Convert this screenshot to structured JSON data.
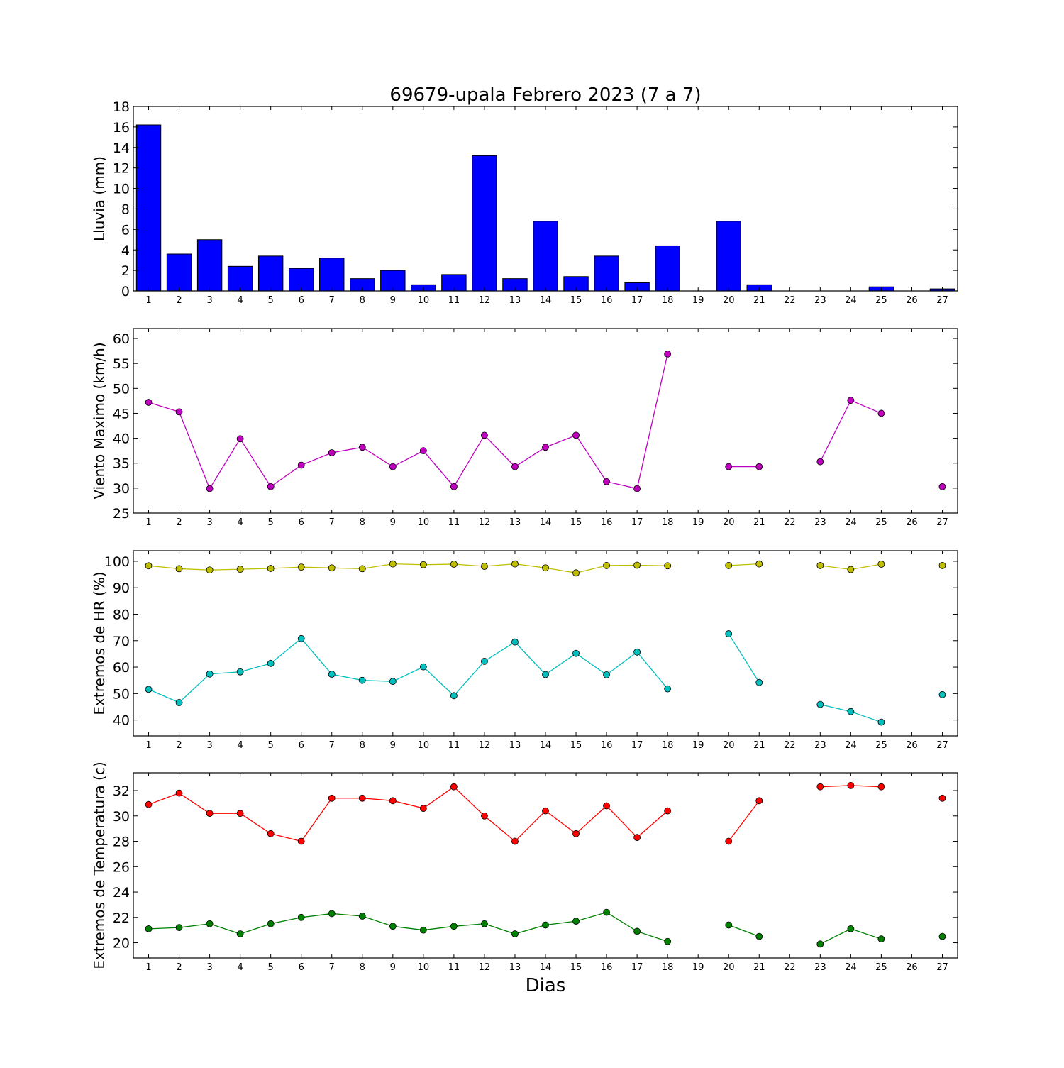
{
  "chart_data": [
    {
      "type": "bar",
      "title": "69679-upala Febrero 2023  (7 a 7)",
      "xlabel": "",
      "ylabel": "Lluvia (mm)",
      "categories": [
        "1",
        "2",
        "3",
        "4",
        "5",
        "6",
        "7",
        "8",
        "9",
        "10",
        "11",
        "12",
        "13",
        "14",
        "15",
        "16",
        "17",
        "18",
        "19",
        "20",
        "21",
        "22",
        "23",
        "24",
        "25",
        "26",
        "27"
      ],
      "values": [
        16.2,
        3.6,
        5.0,
        2.4,
        3.4,
        2.2,
        3.2,
        1.2,
        2.0,
        0.6,
        1.6,
        13.2,
        1.2,
        6.8,
        1.4,
        3.4,
        0.8,
        4.4,
        0,
        6.8,
        0.6,
        0,
        0,
        0,
        0.4,
        0,
        0.2
      ],
      "ylim": [
        0,
        18
      ],
      "yticks": [
        0,
        2,
        4,
        6,
        8,
        10,
        12,
        14,
        16,
        18
      ],
      "colors": {
        "bar": "#0000ff"
      },
      "grid": false
    },
    {
      "type": "line",
      "title": "",
      "xlabel": "",
      "ylabel": "Viento Maximo (km/h)",
      "categories": [
        "1",
        "2",
        "3",
        "4",
        "5",
        "6",
        "7",
        "8",
        "9",
        "10",
        "11",
        "12",
        "13",
        "14",
        "15",
        "16",
        "17",
        "18",
        "19",
        "20",
        "21",
        "22",
        "23",
        "24",
        "25",
        "26",
        "27"
      ],
      "series": [
        {
          "values": [
            47.2,
            45.3,
            29.9,
            39.9,
            30.3,
            34.6,
            37.1,
            38.2,
            34.3,
            37.5,
            30.3,
            40.6,
            34.3,
            38.2,
            40.6,
            31.3,
            29.9,
            56.9,
            null,
            34.3,
            34.3,
            null,
            35.3,
            47.6,
            45.0,
            null,
            30.3
          ],
          "color": "#bf00bf"
        }
      ],
      "ylim": [
        25,
        62
      ],
      "yticks": [
        25,
        30,
        35,
        40,
        45,
        50,
        55,
        60
      ],
      "grid": false
    },
    {
      "type": "line",
      "title": "",
      "xlabel": "",
      "ylabel": "Extremos de HR (%)",
      "categories": [
        "1",
        "2",
        "3",
        "4",
        "5",
        "6",
        "7",
        "8",
        "9",
        "10",
        "11",
        "12",
        "13",
        "14",
        "15",
        "16",
        "17",
        "18",
        "19",
        "20",
        "21",
        "22",
        "23",
        "24",
        "25",
        "26",
        "27"
      ],
      "series": [
        {
          "values": [
            98.3,
            97.2,
            96.7,
            97.0,
            97.3,
            97.8,
            97.5,
            97.2,
            99.0,
            98.7,
            98.9,
            98.1,
            99.0,
            97.5,
            95.6,
            98.4,
            98.5,
            98.3,
            null,
            98.4,
            99.0,
            null,
            98.4,
            96.9,
            98.9,
            null,
            98.4
          ],
          "color": "#bfbf00"
        },
        {
          "values": [
            51.6,
            46.6,
            57.4,
            58.2,
            61.4,
            70.8,
            57.3,
            55.0,
            54.6,
            60.1,
            49.2,
            62.2,
            69.5,
            57.2,
            65.2,
            57.1,
            65.7,
            51.8,
            null,
            72.6,
            54.2,
            null,
            45.9,
            43.2,
            39.2,
            null,
            49.6
          ],
          "color": "#00bfbf"
        }
      ],
      "ylim": [
        34,
        104
      ],
      "yticks": [
        40,
        50,
        60,
        70,
        80,
        90,
        100
      ],
      "grid": false
    },
    {
      "type": "line",
      "title": "",
      "xlabel": "Dias",
      "ylabel": "Extremos de Temperatura (c)",
      "categories": [
        "1",
        "2",
        "3",
        "4",
        "5",
        "6",
        "7",
        "8",
        "9",
        "10",
        "11",
        "12",
        "13",
        "14",
        "15",
        "16",
        "17",
        "18",
        "19",
        "20",
        "21",
        "22",
        "23",
        "24",
        "25",
        "26",
        "27"
      ],
      "series": [
        {
          "values": [
            30.9,
            31.8,
            30.2,
            30.2,
            28.6,
            28.0,
            31.4,
            31.4,
            31.2,
            30.6,
            32.3,
            30.0,
            28.0,
            30.4,
            28.6,
            30.8,
            28.3,
            30.4,
            null,
            28.0,
            31.2,
            null,
            32.3,
            32.4,
            32.3,
            null,
            31.4
          ],
          "color": "#ff0000"
        },
        {
          "values": [
            21.1,
            21.2,
            21.5,
            20.7,
            21.5,
            22.0,
            22.3,
            22.1,
            21.3,
            21.0,
            21.3,
            21.5,
            20.7,
            21.4,
            21.7,
            22.4,
            20.9,
            20.1,
            null,
            21.4,
            20.5,
            null,
            19.9,
            21.1,
            20.3,
            null,
            20.5
          ],
          "color": "#008000"
        }
      ],
      "ylim": [
        18.8,
        33.4
      ],
      "yticks": [
        20,
        22,
        24,
        26,
        28,
        30,
        32
      ],
      "grid": false
    }
  ]
}
